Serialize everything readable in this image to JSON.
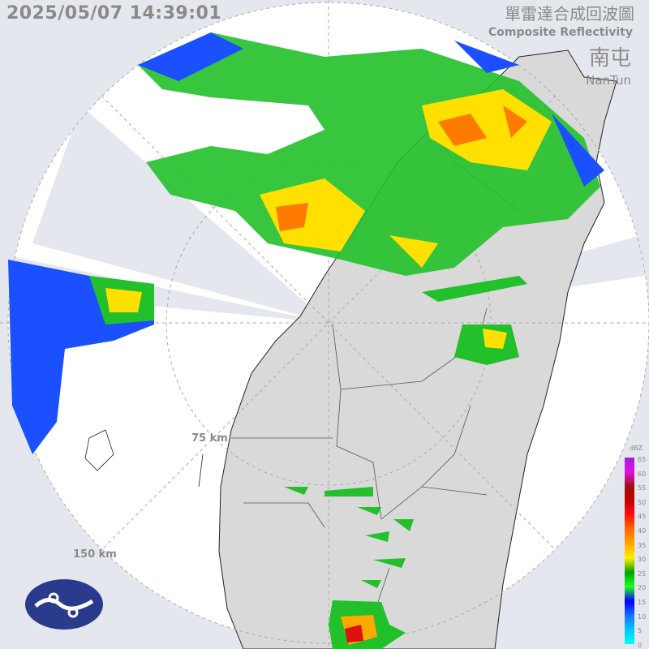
{
  "header": {
    "timestamp": "2025/05/07 14:39:01"
  },
  "title": {
    "zh": "單雷達合成回波圖",
    "en": "Composite Reflectivity"
  },
  "station": {
    "zh": "南屯",
    "en": "NanTun"
  },
  "range_rings": [
    {
      "label": "75 km"
    },
    {
      "label": "150 km"
    }
  ],
  "legend": {
    "unit": "dBZ",
    "ticks": [
      "65",
      "60",
      "55",
      "50",
      "45",
      "40",
      "35",
      "30",
      "25",
      "20",
      "15",
      "10",
      "5",
      "0"
    ],
    "colors": [
      "#9f20d8",
      "#e010e8",
      "#a01010",
      "#c00000",
      "#ff1010",
      "#ff6a00",
      "#ffa800",
      "#ffee00",
      "#00a000",
      "#20ff20",
      "#0000ff",
      "#1a70ff",
      "#00c8ff",
      "#00ffff"
    ]
  },
  "colors": {
    "background": "#e4e8ee",
    "coverage": "#ffffff",
    "land": "#d9d9d9",
    "ring": "#aaaaaa"
  }
}
